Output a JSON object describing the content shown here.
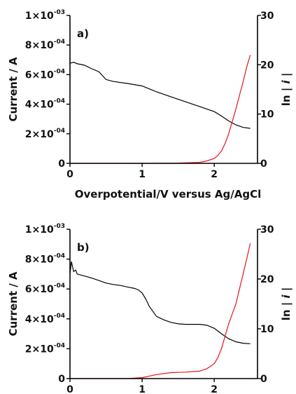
{
  "chart_data": [
    {
      "type": "line",
      "panel_label": "a)",
      "xlabel": "Overpotential/V versus Ag/AgCl",
      "ylabel": "Current / A",
      "y2label_parts": [
        "ln | ",
        "i",
        " |"
      ],
      "xlim": [
        0,
        2.6
      ],
      "ylim": [
        0,
        0.001
      ],
      "y2lim": [
        0,
        30
      ],
      "x_ticks": [
        "0",
        "1",
        "2"
      ],
      "y_ticks": [
        {
          "mant": "0",
          "exp": ""
        },
        {
          "mant": "2×10",
          "exp": "-04"
        },
        {
          "mant": "4×10",
          "exp": "-04"
        },
        {
          "mant": "6×10",
          "exp": "-04"
        },
        {
          "mant": "8×10",
          "exp": "-04"
        },
        {
          "mant": "1×10",
          "exp": "-03"
        }
      ],
      "y2_ticks": [
        "0",
        "10",
        "20",
        "30"
      ],
      "series": [
        {
          "axis": "right",
          "color": "#000000",
          "x": [
            0,
            0.05,
            0.1,
            0.2,
            0.3,
            0.4,
            0.5,
            0.6,
            0.8,
            1.0,
            1.2,
            1.4,
            1.6,
            1.8,
            2.0,
            2.1,
            2.2,
            2.3,
            2.4,
            2.5
          ],
          "y": [
            20.3,
            20.5,
            20.2,
            19.9,
            19.2,
            18.6,
            17.0,
            16.6,
            16.2,
            15.7,
            14.5,
            13.5,
            12.5,
            11.5,
            10.5,
            9.6,
            8.6,
            7.8,
            7.3,
            7.1
          ]
        },
        {
          "axis": "right",
          "color": "#e8141a",
          "x": [
            0,
            1.0,
            1.5,
            1.8,
            1.9,
            2.0,
            2.05,
            2.1,
            2.15,
            2.2,
            2.25,
            2.3,
            2.35,
            2.4,
            2.45,
            2.5
          ],
          "y": [
            0,
            0,
            0.05,
            0.2,
            0.5,
            1.0,
            1.6,
            2.5,
            4.0,
            6.0,
            8.5,
            11.0,
            13.8,
            16.5,
            19.5,
            22.0
          ]
        }
      ]
    },
    {
      "type": "line",
      "panel_label": "b)",
      "xlabel": "",
      "ylabel": "Current / A",
      "y2label_parts": [
        "ln | ",
        "i",
        " |"
      ],
      "xlim": [
        0,
        2.6
      ],
      "ylim": [
        0,
        0.001
      ],
      "y2lim": [
        0,
        30
      ],
      "x_ticks": [
        "0",
        "1",
        "2"
      ],
      "y_ticks": [
        {
          "mant": "0",
          "exp": ""
        },
        {
          "mant": "2×10",
          "exp": "-04"
        },
        {
          "mant": "4×10",
          "exp": "-04"
        },
        {
          "mant": "6×10",
          "exp": "-04"
        },
        {
          "mant": "8×10",
          "exp": "-04"
        },
        {
          "mant": "1×10",
          "exp": "-03"
        }
      ],
      "y2_ticks": [
        "0",
        "10",
        "20",
        "30"
      ],
      "series": [
        {
          "axis": "right",
          "color": "#000000",
          "x": [
            0,
            0.02,
            0.05,
            0.08,
            0.1,
            0.2,
            0.3,
            0.4,
            0.5,
            0.6,
            0.7,
            0.8,
            0.9,
            0.95,
            1.0,
            1.05,
            1.1,
            1.2,
            1.3,
            1.4,
            1.5,
            1.6,
            1.7,
            1.8,
            1.9,
            2.0,
            2.1,
            2.2,
            2.3,
            2.4,
            2.5
          ],
          "y": [
            21.0,
            23.5,
            21.5,
            21.8,
            21.0,
            20.6,
            20.2,
            19.7,
            19.2,
            18.9,
            18.7,
            18.4,
            18.1,
            17.8,
            17.2,
            16.0,
            14.5,
            12.5,
            11.8,
            11.3,
            11.0,
            10.9,
            10.9,
            10.9,
            10.7,
            10.1,
            9.0,
            8.0,
            7.4,
            7.1,
            7.0
          ]
        },
        {
          "axis": "right",
          "color": "#e8141a",
          "x": [
            0,
            0.8,
            1.0,
            1.2,
            1.4,
            1.6,
            1.8,
            1.9,
            2.0,
            2.05,
            2.1,
            2.15,
            2.2,
            2.25,
            2.3,
            2.35,
            2.4,
            2.45,
            2.5
          ],
          "y": [
            0,
            0,
            0.2,
            0.8,
            1.2,
            1.3,
            1.5,
            2.0,
            3.0,
            4.2,
            6.0,
            8.5,
            11.0,
            13.0,
            15.0,
            18.0,
            21.0,
            24.0,
            27.2
          ]
        }
      ]
    }
  ]
}
